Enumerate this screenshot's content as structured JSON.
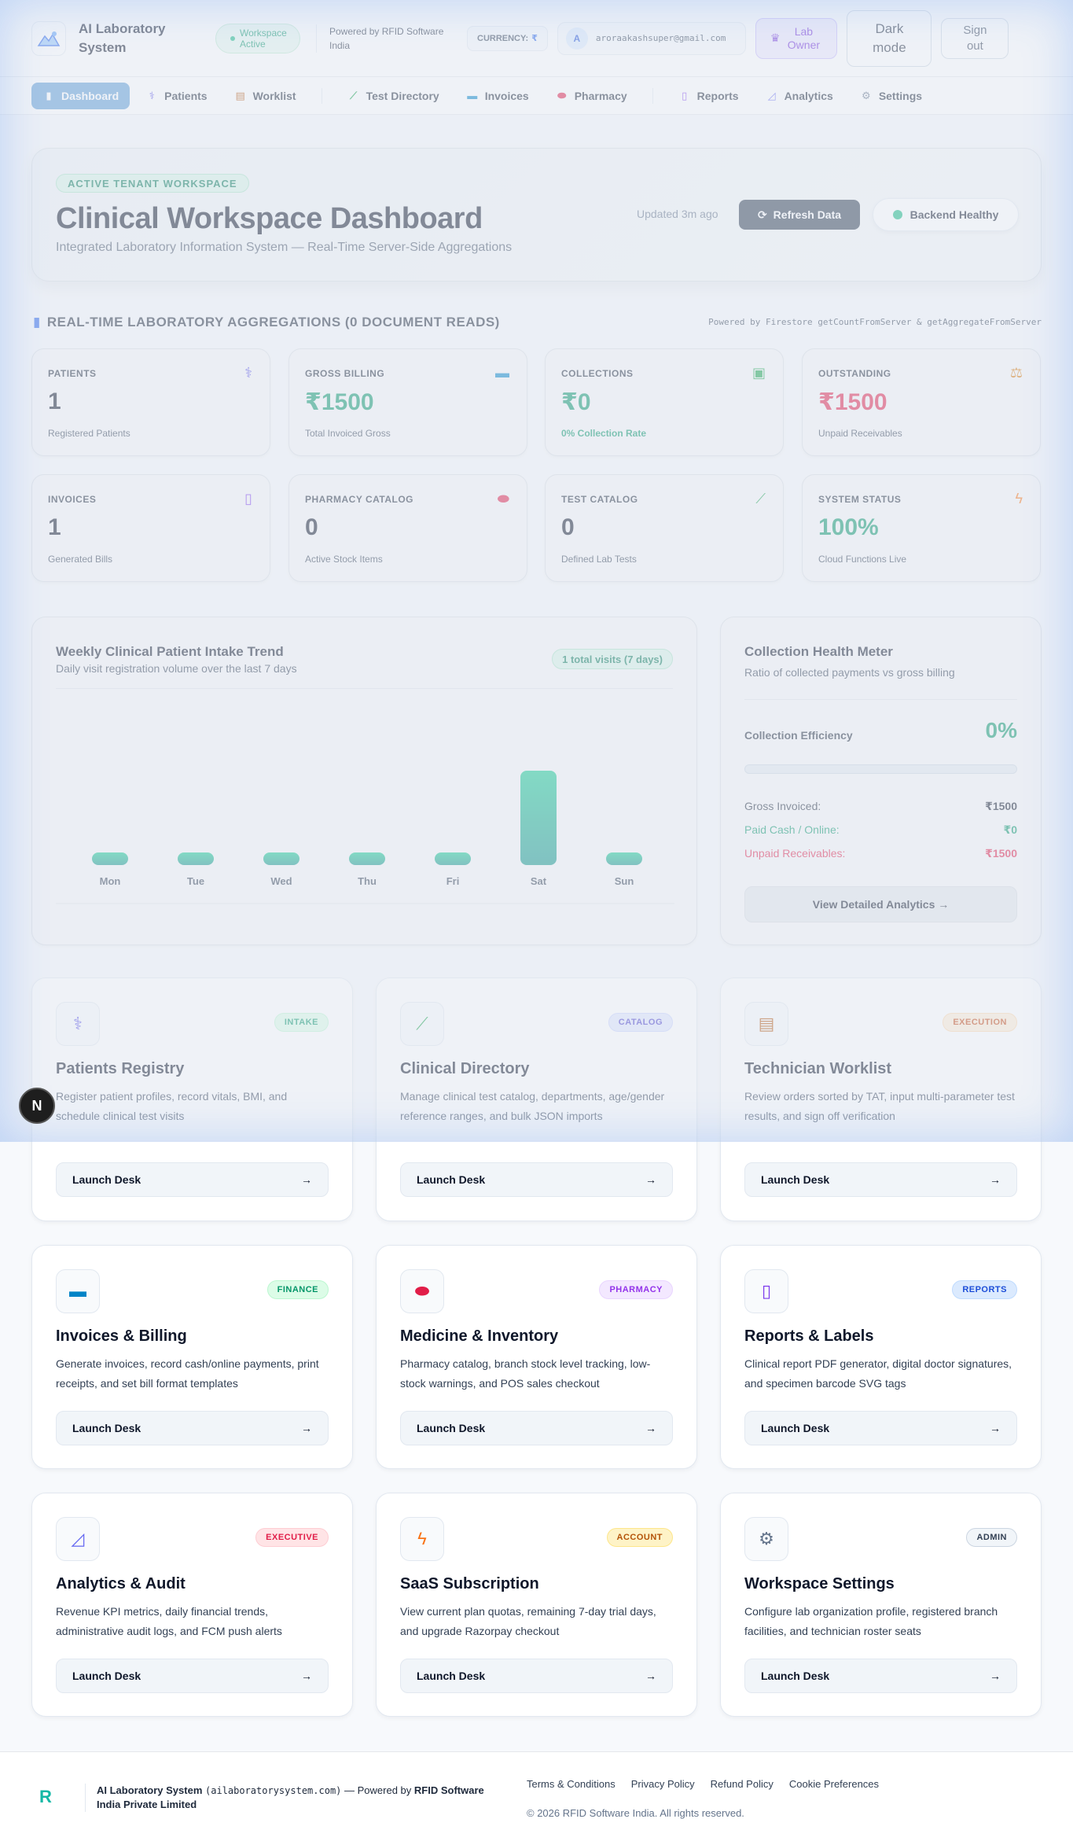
{
  "header": {
    "brand": "AI Laboratory System",
    "workspace_status": "Workspace Active",
    "powered_by": "Powered by RFID Software India",
    "currency_label": "CURRENCY:",
    "currency_symbol": "₹",
    "avatar_initial": "A",
    "email": "aroraakashsuper@gmail.com",
    "role": "Lab Owner",
    "dark_mode": "Dark mode",
    "sign_out": "Sign out"
  },
  "nav": {
    "items": [
      {
        "label": "Dashboard",
        "icon": "bar-chart-icon"
      },
      {
        "label": "Patients",
        "icon": "stethoscope-icon"
      },
      {
        "label": "Worklist",
        "icon": "clipboard-icon"
      },
      {
        "label": "Test Directory",
        "icon": "test-tube-icon"
      },
      {
        "label": "Invoices",
        "icon": "credit-card-icon"
      },
      {
        "label": "Pharmacy",
        "icon": "pill-icon"
      },
      {
        "label": "Reports",
        "icon": "document-icon"
      },
      {
        "label": "Analytics",
        "icon": "chart-icon"
      },
      {
        "label": "Settings",
        "icon": "gear-icon"
      }
    ]
  },
  "hero": {
    "tag": "ACTIVE TENANT WORKSPACE",
    "title": "Clinical Workspace Dashboard",
    "subtitle": "Integrated Laboratory Information System — Real-Time Server-Side Aggregations",
    "updated": "Updated 3m ago",
    "refresh": "Refresh Data",
    "health": "Backend Healthy"
  },
  "aggregations": {
    "title": "REAL-TIME LABORATORY AGGREGATIONS (0 DOCUMENT READS)",
    "powered": "Powered by Firestore getCountFromServer & getAggregateFromServer",
    "stats": [
      {
        "label": "PATIENTS",
        "value": "1",
        "caption": "Registered Patients",
        "icon": "stethoscope-icon"
      },
      {
        "label": "GROSS BILLING",
        "value": "₹1500",
        "caption": "Total Invoiced Gross",
        "icon": "credit-card-icon"
      },
      {
        "label": "COLLECTIONS",
        "value": "₹0",
        "caption": "0% Collection Rate",
        "icon": "cash-icon"
      },
      {
        "label": "OUTSTANDING",
        "value": "₹1500",
        "caption": "Unpaid Receivables",
        "icon": "scales-icon"
      },
      {
        "label": "INVOICES",
        "value": "1",
        "caption": "Generated Bills",
        "icon": "receipt-icon"
      },
      {
        "label": "PHARMACY CATALOG",
        "value": "0",
        "caption": "Active Stock Items",
        "icon": "pill-icon"
      },
      {
        "label": "TEST CATALOG",
        "value": "0",
        "caption": "Defined Lab Tests",
        "icon": "test-tube-icon"
      },
      {
        "label": "SYSTEM STATUS",
        "value": "100%",
        "caption": "Cloud Functions Live",
        "icon": "lightning-icon"
      }
    ]
  },
  "chart_data": {
    "type": "bar",
    "title": "Weekly Clinical Patient Intake Trend",
    "subtitle": "Daily visit registration volume over the last 7 days",
    "badge": "1 total visits (7 days)",
    "categories": [
      "Mon",
      "Tue",
      "Wed",
      "Thu",
      "Fri",
      "Sat",
      "Sun"
    ],
    "values": [
      0,
      0,
      0,
      0,
      0,
      1,
      0
    ],
    "ylim": [
      0,
      1
    ],
    "grid": false,
    "bar_color": "#10b981"
  },
  "meter": {
    "title": "Collection Health Meter",
    "subtitle": "Ratio of collected payments vs gross billing",
    "efficiency_label": "Collection Efficiency",
    "efficiency_value": "0%",
    "efficiency_fraction": 0,
    "gross_label": "Gross Invoiced:",
    "gross_value": "₹1500",
    "paid_label": "Paid Cash / Online:",
    "paid_value": "₹0",
    "unpaid_label": "Unpaid Receivables:",
    "unpaid_value": "₹1500",
    "button": "View Detailed Analytics →"
  },
  "modules": [
    {
      "title": "Patients Registry",
      "badge": "INTAKE",
      "desc": "Register patient profiles, record vitals, BMI, and schedule clinical test visits",
      "icon": "stethoscope-icon",
      "launch": "Launch Desk"
    },
    {
      "title": "Clinical Directory",
      "badge": "CATALOG",
      "desc": "Manage clinical test catalog, departments, age/gender reference ranges, and bulk JSON imports",
      "icon": "test-tube-icon",
      "launch": "Launch Desk"
    },
    {
      "title": "Technician Worklist",
      "badge": "EXECUTION",
      "desc": "Review orders sorted by TAT, input multi-parameter test results, and sign off verification",
      "icon": "clipboard-icon",
      "launch": "Launch Desk"
    },
    {
      "title": "Invoices & Billing",
      "badge": "FINANCE",
      "desc": "Generate invoices, record cash/online payments, print receipts, and set bill format templates",
      "icon": "credit-card-icon",
      "launch": "Launch Desk"
    },
    {
      "title": "Medicine & Inventory",
      "badge": "PHARMACY",
      "desc": "Pharmacy catalog, branch stock level tracking, low-stock warnings, and POS sales checkout",
      "icon": "pill-icon",
      "launch": "Launch Desk"
    },
    {
      "title": "Reports & Labels",
      "badge": "REPORTS",
      "desc": "Clinical report PDF generator, digital doctor signatures, and specimen barcode SVG tags",
      "icon": "document-icon",
      "launch": "Launch Desk"
    },
    {
      "title": "Analytics & Audit",
      "badge": "EXECUTIVE",
      "desc": "Revenue KPI metrics, daily financial trends, administrative audit logs, and FCM push alerts",
      "icon": "chart-icon",
      "launch": "Launch Desk"
    },
    {
      "title": "SaaS Subscription",
      "badge": "ACCOUNT",
      "desc": "View current plan quotas, remaining 7-day trial days, and upgrade Razorpay checkout",
      "icon": "lightning-icon",
      "launch": "Launch Desk"
    },
    {
      "title": "Workspace Settings",
      "badge": "ADMIN",
      "desc": "Configure lab organization profile, registered branch facilities, and technician roster seats",
      "icon": "gear-icon",
      "launch": "Launch Desk"
    }
  ],
  "floating_badge": "N",
  "footer": {
    "brand": "AI Laboratory System",
    "domain": "(ailaboratorysystem.com)",
    "powered_prefix": "— Powered by",
    "company": "RFID Software India Private Limited",
    "links": [
      "Terms & Conditions",
      "Privacy Policy",
      "Refund Policy",
      "Cookie Preferences"
    ],
    "copyright": "© 2026 RFID Software India. All rights reserved."
  }
}
